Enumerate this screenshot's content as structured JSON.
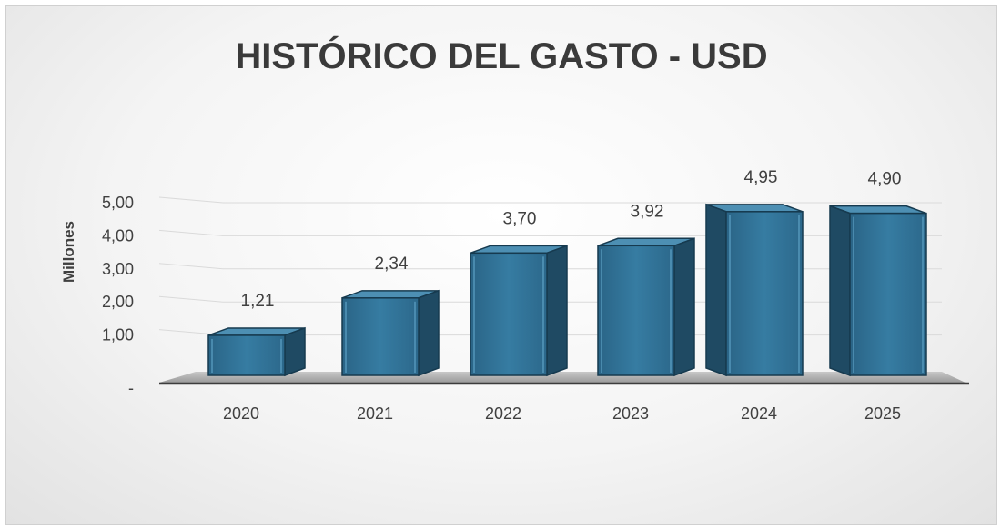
{
  "chart_data": {
    "type": "bar",
    "title": "HISTÓRICO DEL GASTO - USD",
    "ylabel": "Millones",
    "xlabel": "",
    "categories": [
      "2020",
      "2021",
      "2022",
      "2023",
      "2024",
      "2025"
    ],
    "values": [
      1.21,
      2.34,
      3.7,
      3.92,
      4.95,
      4.9
    ],
    "value_labels": [
      "1,21",
      "2,34",
      "3,70",
      "3,92",
      "4,95",
      "4,90"
    ],
    "yticks": [
      0,
      1,
      2,
      3,
      4,
      5
    ],
    "ytick_labels": [
      "-",
      "1,00",
      "2,00",
      "3,00",
      "4,00",
      "5,00"
    ],
    "ylim": [
      0,
      5
    ],
    "grid": true,
    "legend": "none",
    "colors": {
      "bar": "#2f6f93",
      "bar_side": "#1f4a63",
      "bar_top": "#4d8fb3",
      "bar_edge": "#163a4f"
    }
  }
}
